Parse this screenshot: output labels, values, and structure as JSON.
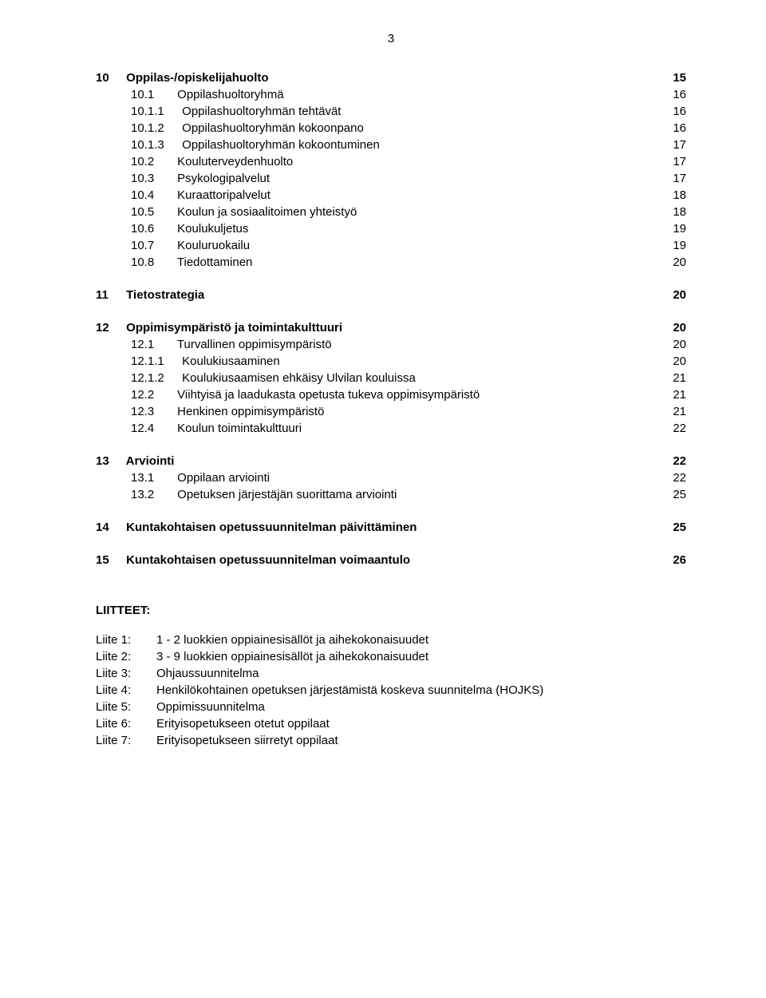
{
  "page_number": "3",
  "toc": [
    {
      "type": "row",
      "level": 0,
      "bold": true,
      "num": "10",
      "title": "Oppilas-/opiskelijahuolto",
      "page": "15"
    },
    {
      "type": "row",
      "level": 1,
      "bold": false,
      "num": "10.1",
      "title": "Oppilashuoltoryhmä",
      "page": "16"
    },
    {
      "type": "row",
      "level": 2,
      "bold": false,
      "num": "10.1.1",
      "title": "Oppilashuoltoryhmän tehtävät",
      "page": "16"
    },
    {
      "type": "row",
      "level": 2,
      "bold": false,
      "num": "10.1.2",
      "title": "Oppilashuoltoryhmän kokoonpano",
      "page": "16"
    },
    {
      "type": "row",
      "level": 2,
      "bold": false,
      "num": "10.1.3",
      "title": "Oppilashuoltoryhmän kokoontuminen",
      "page": "17"
    },
    {
      "type": "row",
      "level": 1,
      "bold": false,
      "num": "10.2",
      "title": "Kouluterveydenhuolto",
      "page": "17"
    },
    {
      "type": "row",
      "level": 1,
      "bold": false,
      "num": "10.3",
      "title": "Psykologipalvelut",
      "page": "17"
    },
    {
      "type": "row",
      "level": 1,
      "bold": false,
      "num": "10.4",
      "title": "Kuraattoripalvelut",
      "page": "18"
    },
    {
      "type": "row",
      "level": 1,
      "bold": false,
      "num": "10.5",
      "title": "Koulun ja sosiaalitoimen yhteistyö",
      "page": "18"
    },
    {
      "type": "row",
      "level": 1,
      "bold": false,
      "num": "10.6",
      "title": "Koulukuljetus",
      "page": "19"
    },
    {
      "type": "row",
      "level": 1,
      "bold": false,
      "num": "10.7",
      "title": "Kouluruokailu",
      "page": "19"
    },
    {
      "type": "row",
      "level": 1,
      "bold": false,
      "num": "10.8",
      "title": "Tiedottaminen",
      "page": "20"
    },
    {
      "type": "gap",
      "size": "md"
    },
    {
      "type": "row",
      "level": 0,
      "bold": true,
      "num": "11",
      "title": "Tietostrategia",
      "page": "20"
    },
    {
      "type": "gap",
      "size": "md"
    },
    {
      "type": "row",
      "level": 0,
      "bold": true,
      "num": "12",
      "title": "Oppimisympäristö ja toimintakulttuuri",
      "page": "20"
    },
    {
      "type": "row",
      "level": 1,
      "bold": false,
      "num": "12.1",
      "title": "Turvallinen oppimisympäristö",
      "page": "20"
    },
    {
      "type": "row",
      "level": 2,
      "bold": false,
      "num": "12.1.1",
      "title": "Koulukiusaaminen",
      "page": "20"
    },
    {
      "type": "row",
      "level": 2,
      "bold": false,
      "num": "12.1.2",
      "title": "Koulukiusaamisen ehkäisy Ulvilan kouluissa",
      "page": "21"
    },
    {
      "type": "row",
      "level": 1,
      "bold": false,
      "num": "12.2",
      "title": "Viihtyisä ja laadukasta opetusta tukeva oppimisympäristö",
      "page": "21"
    },
    {
      "type": "row",
      "level": 1,
      "bold": false,
      "num": "12.3",
      "title": "Henkinen oppimisympäristö",
      "page": "21"
    },
    {
      "type": "row",
      "level": 1,
      "bold": false,
      "num": "12.4",
      "title": "Koulun toimintakulttuuri",
      "page": "22"
    },
    {
      "type": "gap",
      "size": "md"
    },
    {
      "type": "row",
      "level": 0,
      "bold": true,
      "num": "13",
      "title": "Arviointi",
      "page": "22"
    },
    {
      "type": "row",
      "level": 1,
      "bold": false,
      "num": "13.1",
      "title": "Oppilaan arviointi",
      "page": "22"
    },
    {
      "type": "row",
      "level": 1,
      "bold": false,
      "num": "13.2",
      "title": "Opetuksen järjestäjän suorittama arviointi",
      "page": "25"
    },
    {
      "type": "gap",
      "size": "md"
    },
    {
      "type": "row",
      "level": 0,
      "bold": true,
      "num": "14",
      "title": "Kuntakohtaisen opetussuunnitelman päivittäminen",
      "page": "25"
    },
    {
      "type": "gap",
      "size": "md"
    },
    {
      "type": "row",
      "level": 0,
      "bold": true,
      "num": "15",
      "title": "Kuntakohtaisen opetussuunnitelman voimaantulo",
      "page": "26"
    }
  ],
  "liitteet": {
    "heading": "LIITTEET:",
    "items": [
      {
        "label": "Liite 1:",
        "text": "1 - 2 luokkien oppiainesisällöt ja aihekokonaisuudet"
      },
      {
        "label": "Liite 2:",
        "text": "3 - 9 luokkien oppiainesisällöt ja aihekokonaisuudet"
      },
      {
        "label": "Liite 3:",
        "text": "Ohjaussuunnitelma"
      },
      {
        "label": "Liite 4:",
        "text": "Henkilökohtainen opetuksen järjestämistä koskeva suunnitelma (HOJKS)"
      },
      {
        "label": "Liite 5:",
        "text": "Oppimissuunnitelma"
      },
      {
        "label": "Liite 6:",
        "text": "Erityisopetukseen otetut oppilaat"
      },
      {
        "label": "Liite 7:",
        "text": "Erityisopetukseen siirretyt oppilaat"
      }
    ]
  }
}
